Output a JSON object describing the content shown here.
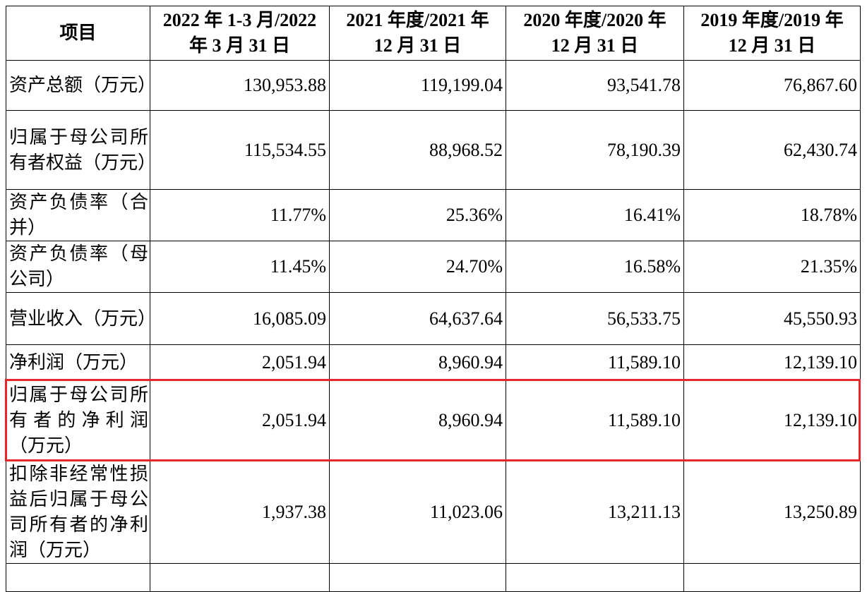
{
  "table": {
    "header": [
      [
        "项目"
      ],
      [
        "2022 年 1-3 月/2022",
        "年 3 月 31 日"
      ],
      [
        "2021 年度/2021 年",
        "12 月 31 日"
      ],
      [
        "2020 年度/2020 年",
        "12 月 31 日"
      ],
      [
        "2019 年度/2019 年",
        "12 月 31 日"
      ]
    ],
    "rows": [
      {
        "label": "资产总额（万元）",
        "values": [
          "130,953.88",
          "119,199.04",
          "93,541.78",
          "76,867.60"
        ]
      },
      {
        "label": "归属于母公司所有者权益（万元）",
        "values": [
          "115,534.55",
          "88,968.52",
          "78,190.39",
          "62,430.74"
        ]
      },
      {
        "label": "资产负债率（合并）",
        "values": [
          "11.77%",
          "25.36%",
          "16.41%",
          "18.78%"
        ]
      },
      {
        "label": "资产负债率（母公司）",
        "values": [
          "11.45%",
          "24.70%",
          "16.58%",
          "21.35%"
        ]
      },
      {
        "label": "营业收入（万元）",
        "values": [
          "16,085.09",
          "64,637.64",
          "56,533.75",
          "45,550.93"
        ]
      },
      {
        "label": "净利润（万元）",
        "values": [
          "2,051.94",
          "8,960.94",
          "11,589.10",
          "12,139.10"
        ]
      },
      {
        "label": "归属于母公司所有者的净利润（万元）",
        "values": [
          "2,051.94",
          "8,960.94",
          "11,589.10",
          "12,139.10"
        ]
      },
      {
        "label": "扣除非经常性损益后归属于母公司所有者的净利润（万元）",
        "values": [
          "1,937.38",
          "11,023.06",
          "13,211.13",
          "13,250.89"
        ]
      }
    ]
  }
}
